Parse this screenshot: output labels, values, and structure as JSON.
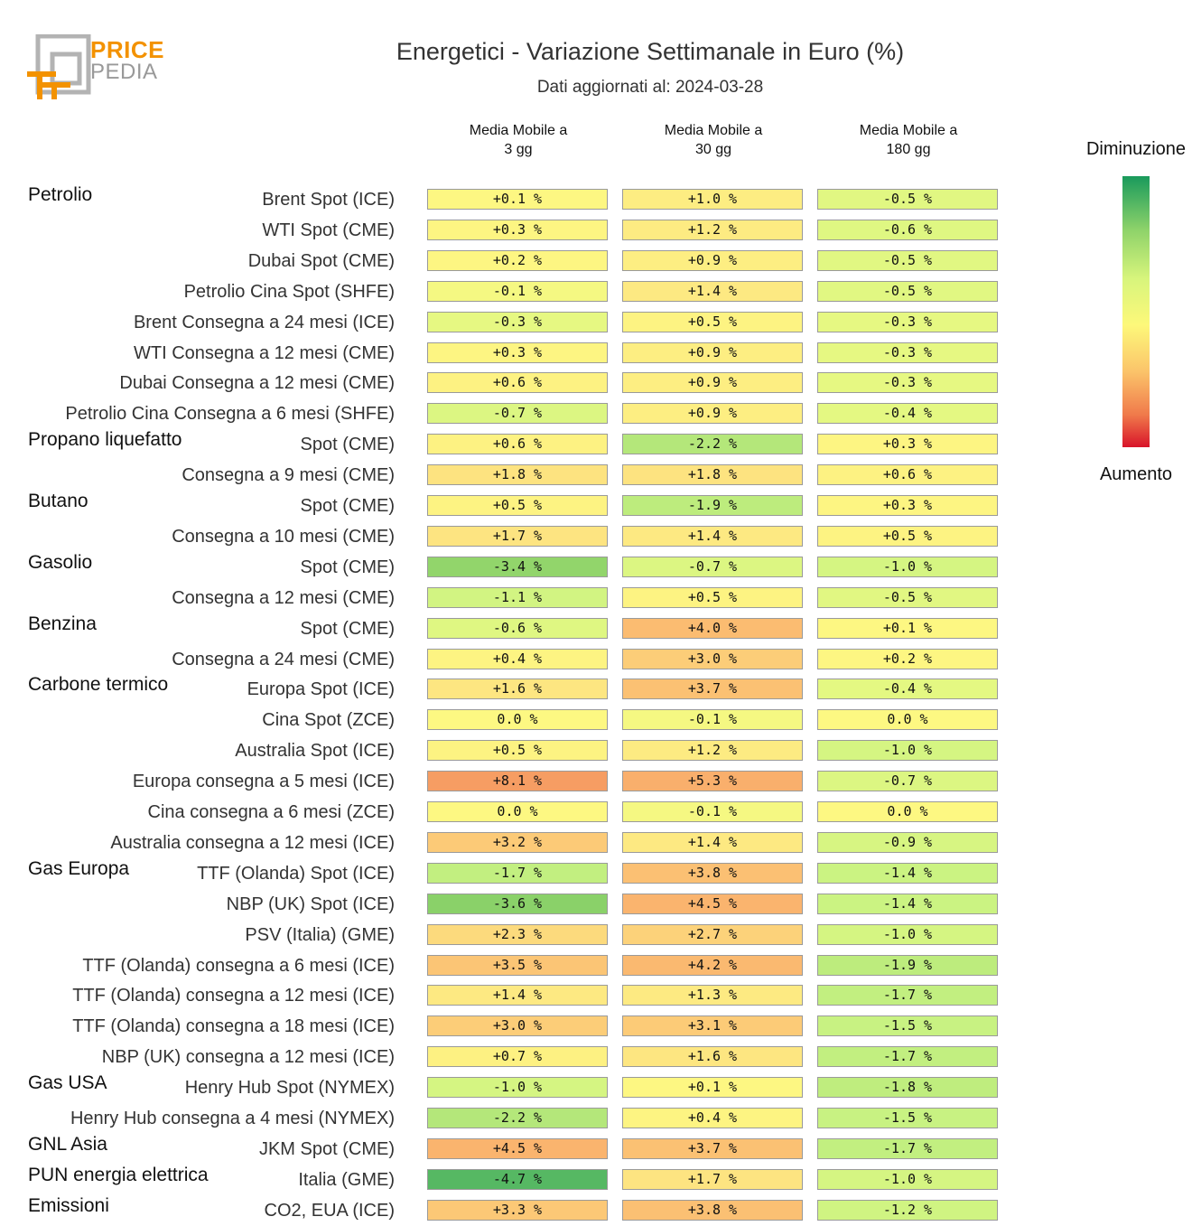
{
  "header": {
    "title": "Energetici - Variazione Settimanale in Euro (%)",
    "subtitle": "Dati aggiornati al: 2024-03-28",
    "logo_top": "PRICE",
    "logo_bottom": "PEDIA"
  },
  "columns": [
    {
      "line1": "Media Mobile a",
      "line2": "3 gg"
    },
    {
      "line1": "Media Mobile a",
      "line2": "30 gg"
    },
    {
      "line1": "Media Mobile a",
      "line2": "180 gg"
    }
  ],
  "legend": {
    "top": "Diminuzione",
    "bottom": "Aumento"
  },
  "chart_data": {
    "type": "heatmap",
    "title": "Energetici - Variazione Settimanale in Euro (%)",
    "value_suffix": " %",
    "columns": [
      "Media Mobile a 3 gg",
      "Media Mobile a 30 gg",
      "Media Mobile a 180 gg"
    ],
    "rows": [
      {
        "group": "Petrolio",
        "label": "Brent Spot (ICE)",
        "values": [
          "+0.1",
          "+1.0",
          "-0.5"
        ]
      },
      {
        "group": "",
        "label": "WTI Spot (CME)",
        "values": [
          "+0.3",
          "+1.2",
          "-0.6"
        ]
      },
      {
        "group": "",
        "label": "Dubai Spot (CME)",
        "values": [
          "+0.2",
          "+0.9",
          "-0.5"
        ]
      },
      {
        "group": "",
        "label": "Petrolio Cina Spot (SHFE)",
        "values": [
          "-0.1",
          "+1.4",
          "-0.5"
        ]
      },
      {
        "group": "",
        "label": "Brent Consegna a 24 mesi (ICE)",
        "values": [
          "-0.3",
          "+0.5",
          "-0.3"
        ]
      },
      {
        "group": "",
        "label": "WTI Consegna a 12 mesi (CME)",
        "values": [
          "+0.3",
          "+0.9",
          "-0.3"
        ]
      },
      {
        "group": "",
        "label": "Dubai Consegna a 12 mesi (CME)",
        "values": [
          "+0.6",
          "+0.9",
          "-0.3"
        ]
      },
      {
        "group": "",
        "label": "Petrolio Cina Consegna a 6 mesi (SHFE)",
        "values": [
          "-0.7",
          "+0.9",
          "-0.4"
        ]
      },
      {
        "group": "Propano liquefatto",
        "label": "Spot (CME)",
        "values": [
          "+0.6",
          "-2.2",
          "+0.3"
        ]
      },
      {
        "group": "",
        "label": "Consegna a 9 mesi (CME)",
        "values": [
          "+1.8",
          "+1.8",
          "+0.6"
        ]
      },
      {
        "group": "Butano",
        "label": "Spot (CME)",
        "values": [
          "+0.5",
          "-1.9",
          "+0.3"
        ]
      },
      {
        "group": "",
        "label": "Consegna a 10 mesi (CME)",
        "values": [
          "+1.7",
          "+1.4",
          "+0.5"
        ]
      },
      {
        "group": "Gasolio",
        "label": "Spot (CME)",
        "values": [
          "-3.4",
          "-0.7",
          "-1.0"
        ]
      },
      {
        "group": "",
        "label": "Consegna a 12 mesi (CME)",
        "values": [
          "-1.1",
          "+0.5",
          "-0.5"
        ]
      },
      {
        "group": "Benzina",
        "label": "Spot (CME)",
        "values": [
          "-0.6",
          "+4.0",
          "+0.1"
        ]
      },
      {
        "group": "",
        "label": "Consegna a 24 mesi (CME)",
        "values": [
          "+0.4",
          "+3.0",
          "+0.2"
        ]
      },
      {
        "group": "Carbone termico",
        "label": "Europa Spot (ICE)",
        "values": [
          "+1.6",
          "+3.7",
          "-0.4"
        ]
      },
      {
        "group": "",
        "label": "Cina Spot (ZCE)",
        "values": [
          "0.0",
          "-0.1",
          "0.0"
        ]
      },
      {
        "group": "",
        "label": "Australia Spot (ICE)",
        "values": [
          "+0.5",
          "+1.2",
          "-1.0"
        ]
      },
      {
        "group": "",
        "label": "Europa consegna a 5 mesi (ICE)",
        "values": [
          "+8.1",
          "+5.3",
          "-0.7"
        ]
      },
      {
        "group": "",
        "label": "Cina consegna a 6 mesi (ZCE)",
        "values": [
          "0.0",
          "-0.1",
          "0.0"
        ]
      },
      {
        "group": "",
        "label": "Australia consegna a 12 mesi (ICE)",
        "values": [
          "+3.2",
          "+1.4",
          "-0.9"
        ]
      },
      {
        "group": "Gas Europa",
        "label": "TTF (Olanda) Spot (ICE)",
        "values": [
          "-1.7",
          "+3.8",
          "-1.4"
        ]
      },
      {
        "group": "",
        "label": "NBP (UK) Spot (ICE)",
        "values": [
          "-3.6",
          "+4.5",
          "-1.4"
        ]
      },
      {
        "group": "",
        "label": "PSV (Italia) (GME)",
        "values": [
          "+2.3",
          "+2.7",
          "-1.0"
        ]
      },
      {
        "group": "",
        "label": "TTF (Olanda) consegna a 6 mesi (ICE)",
        "values": [
          "+3.5",
          "+4.2",
          "-1.9"
        ]
      },
      {
        "group": "",
        "label": "TTF (Olanda) consegna a 12 mesi (ICE)",
        "values": [
          "+1.4",
          "+1.3",
          "-1.7"
        ]
      },
      {
        "group": "",
        "label": "TTF (Olanda) consegna a 18 mesi (ICE)",
        "values": [
          "+3.0",
          "+3.1",
          "-1.5"
        ]
      },
      {
        "group": "",
        "label": "NBP (UK) consegna a 12 mesi (ICE)",
        "values": [
          "+0.7",
          "+1.6",
          "-1.7"
        ]
      },
      {
        "group": "Gas USA",
        "label": "Henry Hub Spot (NYMEX)",
        "values": [
          "-1.0",
          "+0.1",
          "-1.8"
        ]
      },
      {
        "group": "",
        "label": "Henry Hub consegna a 4 mesi (NYMEX)",
        "values": [
          "-2.2",
          "+0.4",
          "-1.5"
        ]
      },
      {
        "group": "GNL Asia",
        "label": "JKM Spot (CME)",
        "values": [
          "+4.5",
          "+3.7",
          "-1.7"
        ]
      },
      {
        "group": "PUN energia elettrica",
        "label": "Italia (GME)",
        "values": [
          "-4.7",
          "+1.7",
          "-1.0"
        ]
      },
      {
        "group": "Emissioni",
        "label": "CO2, EUA (ICE)",
        "values": [
          "+3.3",
          "+3.8",
          "-1.2"
        ]
      }
    ]
  }
}
